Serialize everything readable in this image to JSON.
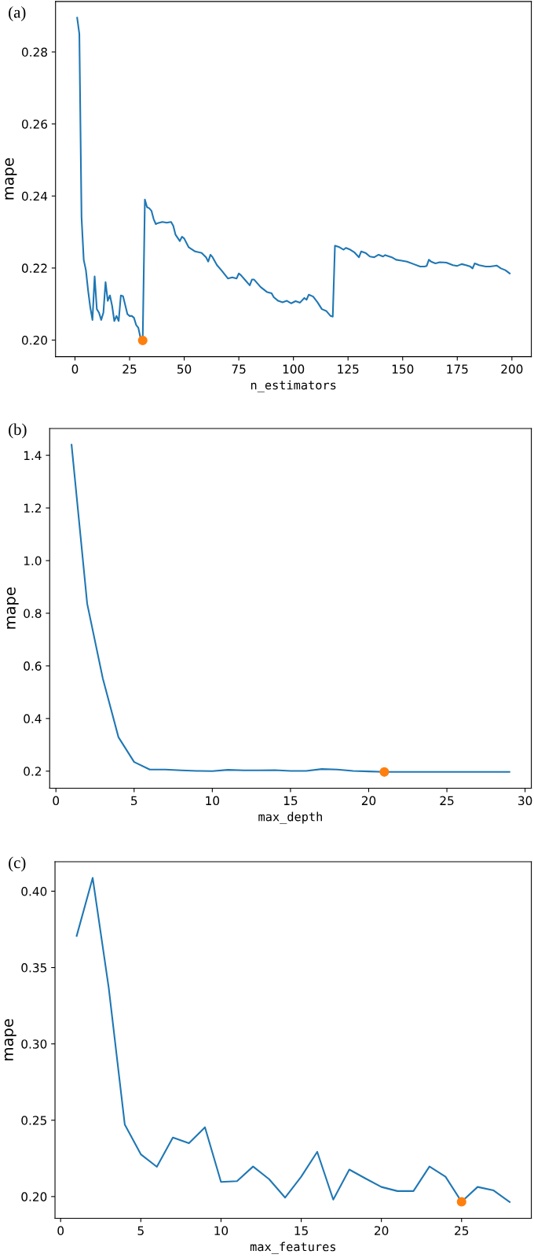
{
  "chart_data": [
    {
      "type": "line",
      "title": "(a)",
      "xlabel": "n_estimators",
      "ylabel": "mape",
      "xlim": [
        -8.9,
        208.9
      ],
      "xticks": [
        0,
        25,
        50,
        75,
        100,
        125,
        150,
        175,
        200
      ],
      "ylim": [
        0.1954,
        0.294
      ],
      "yticks": [
        {
          "value": 0.2,
          "label": "0.20"
        },
        {
          "value": 0.22,
          "label": "0.22"
        },
        {
          "value": 0.24,
          "label": "0.24"
        },
        {
          "value": 0.26,
          "label": "0.26"
        },
        {
          "value": 0.28,
          "label": "0.28"
        }
      ],
      "grid": false,
      "series": [
        {
          "color": "#1f77b4",
          "x": [
            1,
            2,
            3,
            4,
            5,
            6,
            7,
            8,
            9,
            10,
            11,
            12,
            13,
            14,
            15,
            16,
            17,
            18,
            19,
            20,
            21,
            22,
            23,
            24,
            25,
            26,
            27,
            28,
            29,
            30,
            31,
            32,
            33,
            34,
            35,
            36,
            37,
            38,
            40,
            42,
            44,
            45,
            46,
            48,
            49,
            50,
            52,
            55,
            58,
            60,
            61,
            62,
            63,
            65,
            67,
            70,
            72,
            74,
            75,
            76,
            78,
            80,
            81,
            82,
            85,
            88,
            90,
            91,
            93,
            95,
            97,
            99,
            101,
            103,
            105,
            106,
            107,
            109,
            111,
            113,
            115,
            117,
            118,
            119,
            121,
            123,
            124,
            126,
            128,
            130,
            131,
            133,
            135,
            137,
            139,
            141,
            142,
            145,
            147,
            149,
            152,
            155,
            158,
            160,
            161,
            162,
            163,
            165,
            167,
            170,
            173,
            175,
            177,
            179,
            181,
            182,
            183,
            185,
            188,
            190,
            192,
            193,
            195,
            197,
            199
          ],
          "values": [
            0.2895,
            0.285,
            0.2341,
            0.2223,
            0.2194,
            0.2138,
            0.2091,
            0.2056,
            0.2177,
            0.2086,
            0.2076,
            0.2056,
            0.2076,
            0.2161,
            0.2109,
            0.2124,
            0.2095,
            0.2053,
            0.2067,
            0.2053,
            0.2124,
            0.2122,
            0.2097,
            0.2072,
            0.2067,
            0.2067,
            0.2062,
            0.2042,
            0.2034,
            0.2006,
            0.1999,
            0.239,
            0.2369,
            0.2366,
            0.2359,
            0.2336,
            0.2322,
            0.2325,
            0.2328,
            0.2326,
            0.2328,
            0.2317,
            0.2293,
            0.2275,
            0.2287,
            0.2282,
            0.2258,
            0.2246,
            0.2242,
            0.223,
            0.2218,
            0.2237,
            0.223,
            0.2208,
            0.2194,
            0.2171,
            0.2174,
            0.2171,
            0.2185,
            0.218,
            0.2166,
            0.2152,
            0.2168,
            0.2168,
            0.2147,
            0.2133,
            0.213,
            0.2119,
            0.2109,
            0.2105,
            0.2109,
            0.2102,
            0.2108,
            0.2104,
            0.2117,
            0.2112,
            0.2126,
            0.2121,
            0.2105,
            0.2086,
            0.2081,
            0.2067,
            0.2065,
            0.2262,
            0.2258,
            0.2251,
            0.2256,
            0.2251,
            0.2243,
            0.223,
            0.2246,
            0.2242,
            0.2232,
            0.223,
            0.2237,
            0.2232,
            0.2236,
            0.223,
            0.2223,
            0.2221,
            0.2218,
            0.2211,
            0.2204,
            0.2204,
            0.2206,
            0.2223,
            0.2218,
            0.2213,
            0.2216,
            0.2215,
            0.2208,
            0.2206,
            0.2211,
            0.2208,
            0.2204,
            0.2199,
            0.2213,
            0.2208,
            0.2204,
            0.2204,
            0.2206,
            0.2207,
            0.2199,
            0.2194,
            0.2185
          ]
        },
        {
          "type": "scatter",
          "color": "#ff7f0e",
          "marker": "circle",
          "x": [
            31
          ],
          "values": [
            0.1999
          ]
        }
      ]
    },
    {
      "type": "line",
      "title": "(b)",
      "xlabel": "max_depth",
      "ylabel": "mape",
      "xlim": [
        -0.4,
        30.4
      ],
      "xticks": [
        0,
        5,
        10,
        15,
        20,
        25,
        30
      ],
      "ylim": [
        0.135,
        1.502
      ],
      "yticks": [
        0.2,
        0.4,
        0.6,
        0.8,
        {
          "value": 1.0,
          "label": "1.0"
        },
        1.2,
        1.4
      ],
      "grid": false,
      "series": [
        {
          "color": "#1f77b4",
          "x": [
            1,
            2,
            3,
            4,
            5,
            6,
            7,
            8,
            9,
            10,
            11,
            12,
            13,
            14,
            15,
            16,
            17,
            18,
            19,
            20,
            21,
            22,
            23,
            24,
            25,
            26,
            27,
            28,
            29
          ],
          "values": [
            1.44,
            0.836,
            0.552,
            0.329,
            0.235,
            0.206,
            0.206,
            0.203,
            0.201,
            0.2,
            0.205,
            0.203,
            0.203,
            0.204,
            0.201,
            0.201,
            0.208,
            0.206,
            0.201,
            0.199,
            0.197,
            0.197,
            0.197,
            0.197,
            0.197,
            0.197,
            0.197,
            0.197,
            0.197
          ]
        },
        {
          "type": "scatter",
          "color": "#ff7f0e",
          "marker": "circle",
          "x": [
            21
          ],
          "values": [
            0.197
          ]
        }
      ]
    },
    {
      "type": "line",
      "title": "(c)",
      "xlabel": "max_features",
      "ylabel": "mape",
      "xlim": [
        -0.35,
        29.35
      ],
      "xticks": [
        0,
        5,
        10,
        15,
        20,
        25
      ],
      "ylim": [
        0.1858,
        0.4193
      ],
      "yticks": [
        {
          "value": 0.2,
          "label": "0.20"
        },
        {
          "value": 0.25,
          "label": "0.25"
        },
        {
          "value": 0.3,
          "label": "0.30"
        },
        {
          "value": 0.35,
          "label": "0.35"
        },
        {
          "value": 0.4,
          "label": "0.40"
        }
      ],
      "grid": false,
      "series": [
        {
          "color": "#1f77b4",
          "x": [
            1,
            2,
            3,
            4,
            5,
            6,
            7,
            8,
            9,
            10,
            11,
            12,
            13,
            14,
            15,
            16,
            17,
            18,
            19,
            20,
            21,
            22,
            23,
            24,
            25,
            26,
            27,
            28
          ],
          "values": [
            0.3707,
            0.4087,
            0.3367,
            0.2472,
            0.2277,
            0.2195,
            0.2387,
            0.2349,
            0.2454,
            0.2096,
            0.2101,
            0.2197,
            0.2114,
            0.1993,
            0.213,
            0.2293,
            0.198,
            0.2177,
            0.2119,
            0.2063,
            0.2036,
            0.2036,
            0.2197,
            0.213,
            0.1966,
            0.2063,
            0.204,
            0.1964
          ]
        },
        {
          "type": "scatter",
          "color": "#ff7f0e",
          "marker": "circle",
          "x": [
            25
          ],
          "values": [
            0.1966
          ]
        }
      ]
    }
  ]
}
